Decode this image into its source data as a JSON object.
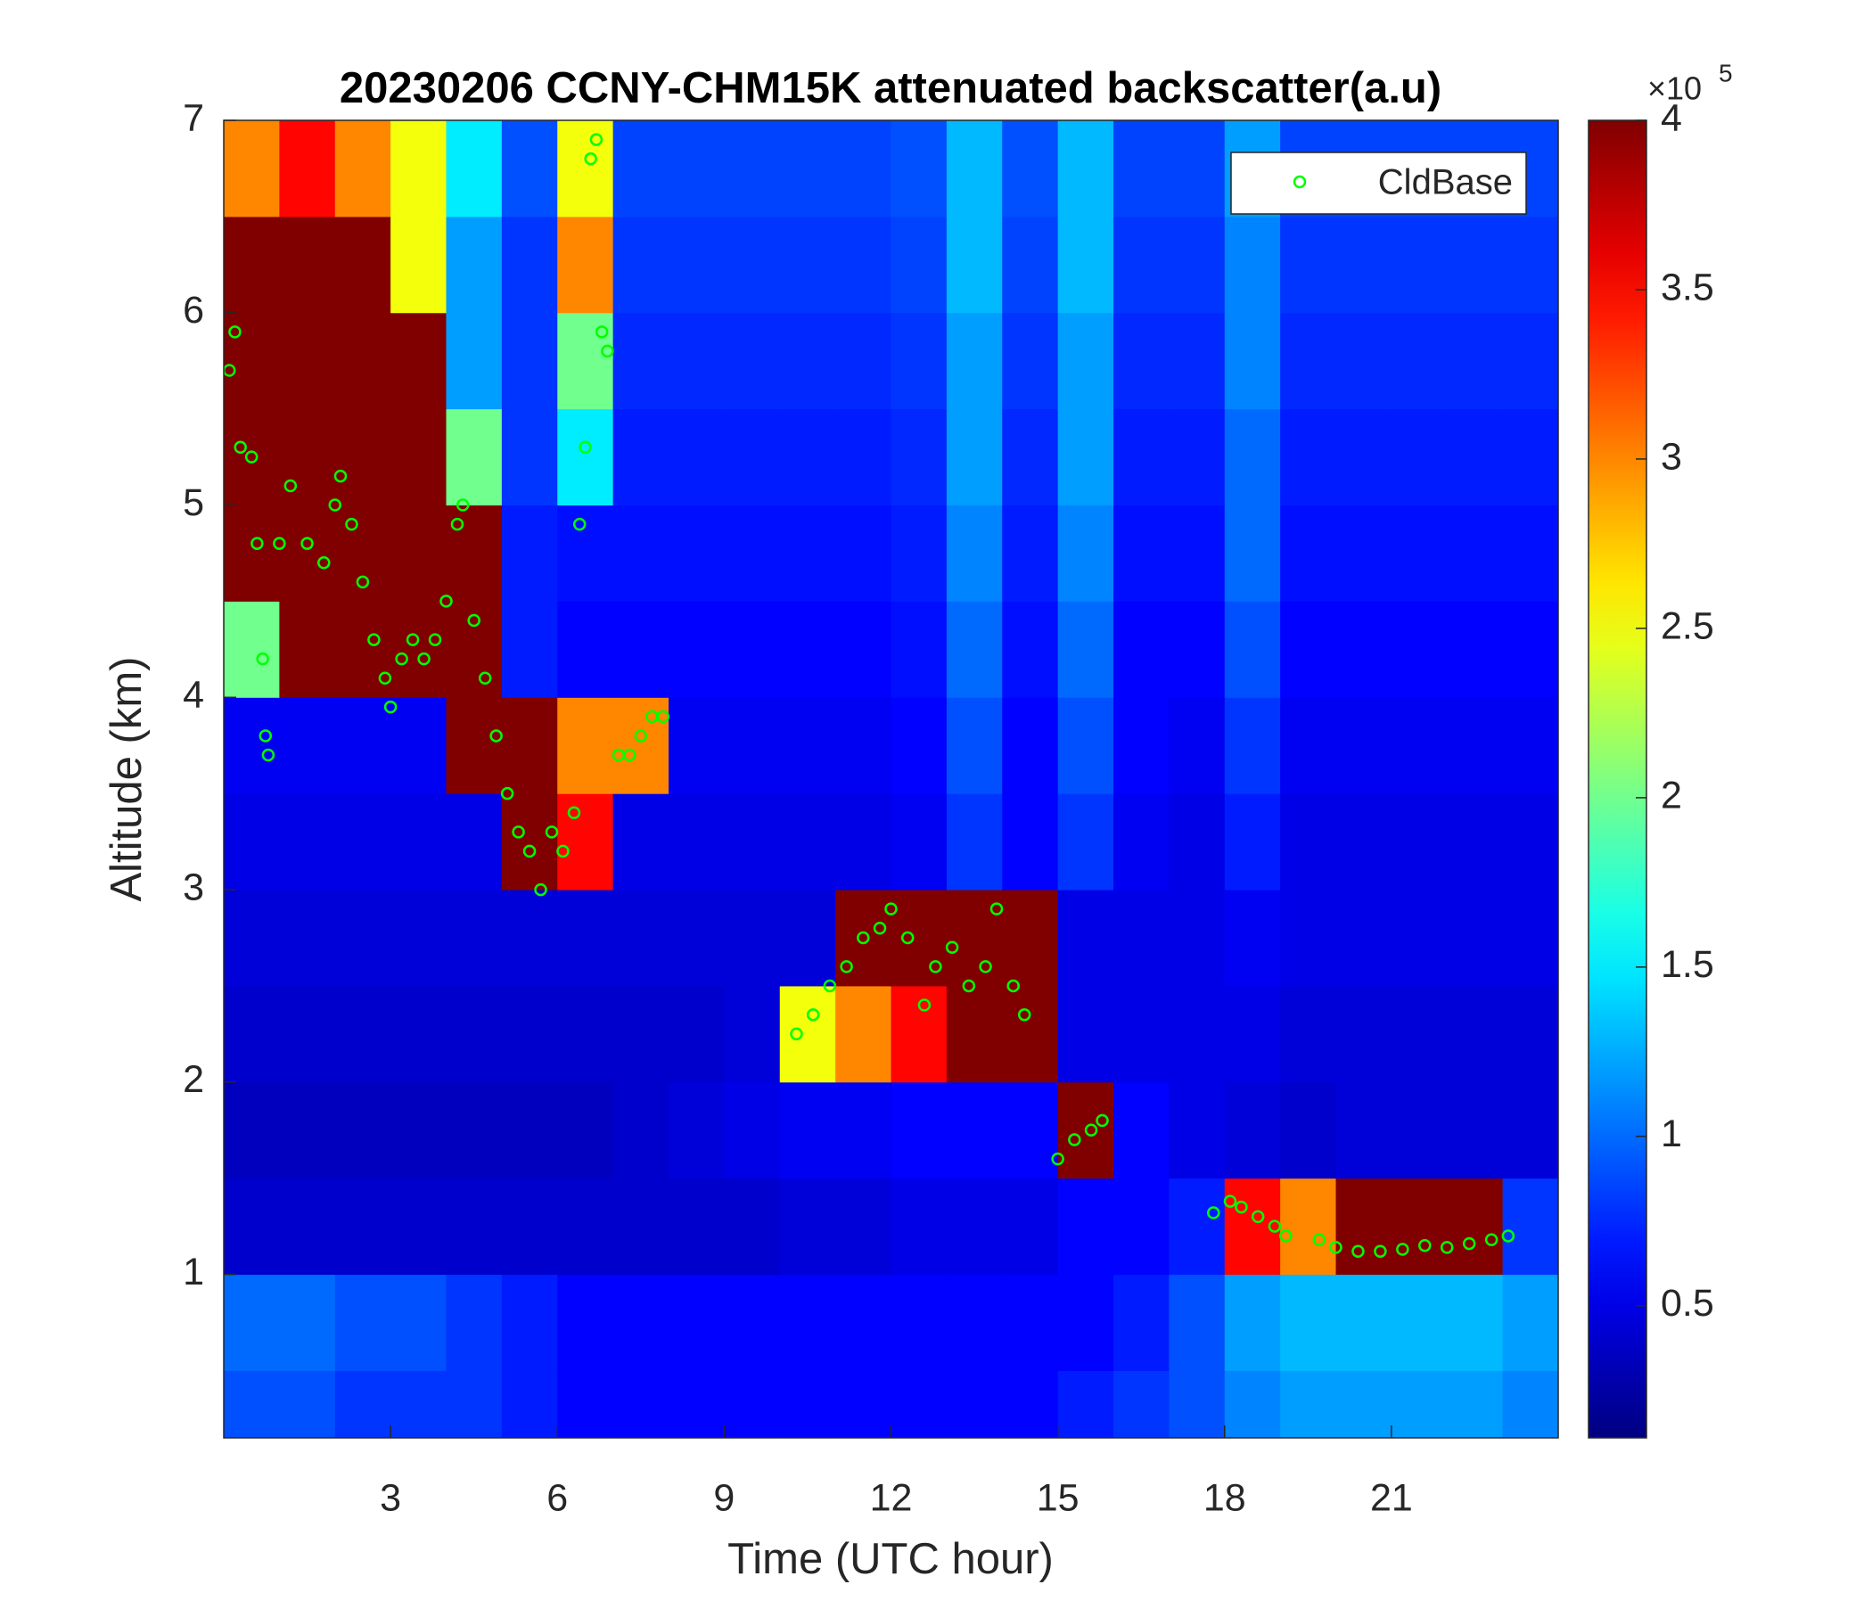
{
  "chart_data": {
    "type": "heatmap",
    "title": "20230206 CCNY-CHM15K attenuated backscatter(a.u)",
    "xlabel": "Time (UTC hour)",
    "ylabel": "Altitude (km)",
    "xlim": [
      0,
      24
    ],
    "ylim": [
      0.15,
      7
    ],
    "xticks": [
      3,
      6,
      9,
      12,
      15,
      18,
      21
    ],
    "yticks": [
      1,
      2,
      3,
      4,
      5,
      6,
      7
    ],
    "x_edges": [
      0,
      1,
      2,
      3,
      4,
      5,
      6,
      7,
      8,
      9,
      10,
      11,
      12,
      13,
      14,
      15,
      16,
      17,
      18,
      19,
      20,
      21,
      22,
      23,
      24
    ],
    "y_edges": [
      0,
      0.5,
      1,
      1.5,
      2,
      2.5,
      3,
      3.5,
      4,
      4.5,
      5,
      5.5,
      6,
      6.5,
      7
    ],
    "colormap": "jet",
    "z": [
      [
        0.9,
        0.9,
        0.8,
        0.8,
        0.8,
        0.7,
        0.6,
        0.6,
        0.6,
        0.6,
        0.6,
        0.6,
        0.6,
        0.6,
        0.6,
        0.7,
        0.8,
        0.9,
        1.1,
        1.2,
        1.2,
        1.2,
        1.2,
        1.1
      ],
      [
        1.0,
        1.0,
        0.9,
        0.9,
        0.8,
        0.7,
        0.6,
        0.6,
        0.6,
        0.6,
        0.6,
        0.6,
        0.6,
        0.6,
        0.6,
        0.6,
        0.7,
        0.9,
        1.2,
        1.3,
        1.3,
        1.3,
        1.3,
        1.2
      ],
      [
        0.4,
        0.4,
        0.4,
        0.4,
        0.4,
        0.4,
        0.4,
        0.4,
        0.4,
        0.4,
        0.45,
        0.45,
        0.5,
        0.5,
        0.5,
        0.6,
        0.6,
        0.7,
        3.5,
        3.0,
        4,
        4,
        4,
        0.8
      ],
      [
        0.35,
        0.35,
        0.35,
        0.35,
        0.35,
        0.35,
        0.35,
        0.4,
        0.45,
        0.5,
        0.55,
        0.55,
        0.6,
        0.6,
        0.6,
        4,
        0.6,
        0.5,
        0.45,
        0.4,
        0.45,
        0.45,
        0.45,
        0.45
      ],
      [
        0.4,
        0.4,
        0.4,
        0.4,
        0.4,
        0.4,
        0.4,
        0.4,
        0.4,
        0.45,
        2.5,
        3,
        3.5,
        4,
        4,
        0.5,
        0.5,
        0.5,
        0.5,
        0.45,
        0.45,
        0.45,
        0.45,
        0.45
      ],
      [
        0.45,
        0.45,
        0.45,
        0.45,
        0.45,
        0.45,
        0.45,
        0.45,
        0.45,
        0.45,
        0.45,
        4,
        4,
        4,
        4,
        0.5,
        0.5,
        0.5,
        0.55,
        0.5,
        0.5,
        0.5,
        0.5,
        0.5
      ],
      [
        0.5,
        0.5,
        0.5,
        0.5,
        0.5,
        4,
        3.5,
        0.5,
        0.5,
        0.5,
        0.5,
        0.5,
        0.55,
        0.8,
        0.6,
        0.8,
        0.55,
        0.5,
        0.7,
        0.5,
        0.5,
        0.5,
        0.5,
        0.5
      ],
      [
        0.55,
        0.55,
        0.55,
        0.55,
        4,
        4,
        3,
        3,
        0.55,
        0.55,
        0.55,
        0.55,
        0.6,
        0.9,
        0.6,
        0.9,
        0.6,
        0.55,
        0.8,
        0.55,
        0.55,
        0.55,
        0.55,
        0.55
      ],
      [
        2,
        4,
        4,
        4,
        4,
        0.7,
        0.6,
        0.6,
        0.6,
        0.6,
        0.6,
        0.6,
        0.65,
        1,
        0.65,
        1,
        0.6,
        0.6,
        0.9,
        0.6,
        0.6,
        0.6,
        0.6,
        0.6
      ],
      [
        4,
        4,
        4,
        4,
        4,
        0.7,
        0.65,
        0.65,
        0.65,
        0.65,
        0.65,
        0.65,
        0.7,
        1.1,
        0.7,
        1.1,
        0.65,
        0.65,
        1,
        0.65,
        0.65,
        0.65,
        0.65,
        0.65
      ],
      [
        4,
        4,
        4,
        4,
        2,
        0.8,
        1.5,
        0.7,
        0.7,
        0.7,
        0.7,
        0.7,
        0.75,
        1.2,
        0.75,
        1.2,
        0.7,
        0.7,
        1,
        0.7,
        0.7,
        0.7,
        0.7,
        0.7
      ],
      [
        4,
        4,
        4,
        4,
        1.2,
        0.8,
        2,
        0.75,
        0.75,
        0.75,
        0.75,
        0.75,
        0.8,
        1.2,
        0.8,
        1.2,
        0.75,
        0.75,
        1.1,
        0.75,
        0.75,
        0.75,
        0.75,
        0.75
      ],
      [
        4,
        4,
        4,
        2.5,
        1.2,
        0.8,
        3,
        0.8,
        0.8,
        0.8,
        0.8,
        0.8,
        0.85,
        1.3,
        0.85,
        1.3,
        0.8,
        0.8,
        1.1,
        0.8,
        0.8,
        0.8,
        0.8,
        0.8
      ],
      [
        3,
        3.5,
        3,
        2.5,
        1.5,
        0.9,
        2.5,
        0.85,
        0.85,
        0.85,
        0.85,
        0.85,
        0.9,
        1.3,
        0.9,
        1.3,
        0.85,
        0.85,
        1.2,
        0.85,
        0.85,
        0.85,
        0.85,
        0.85
      ]
    ],
    "colorbar": {
      "clim": [
        0.11,
        4
      ],
      "ticks": [
        0.5,
        1,
        1.5,
        2,
        2.5,
        3,
        3.5,
        4
      ],
      "exponent_base": "×10",
      "exponent": 5
    },
    "overlay": {
      "type": "scatter",
      "name": "CldBase",
      "color": "#00ff00",
      "x": [
        0.1,
        0.2,
        0.3,
        0.5,
        0.6,
        0.7,
        0.75,
        0.8,
        1.0,
        1.2,
        1.5,
        1.8,
        2.0,
        2.1,
        2.3,
        2.5,
        2.7,
        2.9,
        3.0,
        3.2,
        3.4,
        3.6,
        3.8,
        4.0,
        4.2,
        4.3,
        4.5,
        4.7,
        4.9,
        5.1,
        5.3,
        5.5,
        5.7,
        5.9,
        6.1,
        6.3,
        6.4,
        6.5,
        6.6,
        6.7,
        6.8,
        6.9,
        7.1,
        7.3,
        7.5,
        7.7,
        7.9,
        10.3,
        10.6,
        10.9,
        11.2,
        11.5,
        11.8,
        12.0,
        12.3,
        12.6,
        12.8,
        13.1,
        13.4,
        13.7,
        13.9,
        14.2,
        14.4,
        15.0,
        15.3,
        15.6,
        15.8,
        17.8,
        18.1,
        18.3,
        18.6,
        18.9,
        19.1,
        19.7,
        20.0,
        20.4,
        20.8,
        21.2,
        21.6,
        22.0,
        22.4,
        22.8,
        23.1
      ],
      "y": [
        5.7,
        5.9,
        5.3,
        5.25,
        4.8,
        4.2,
        3.8,
        3.7,
        4.8,
        5.1,
        4.8,
        4.7,
        5.0,
        5.15,
        4.9,
        4.6,
        4.3,
        4.1,
        3.95,
        4.2,
        4.3,
        4.2,
        4.3,
        4.5,
        4.9,
        5.0,
        4.4,
        4.1,
        3.8,
        3.5,
        3.3,
        3.2,
        3.0,
        3.3,
        3.2,
        3.4,
        4.9,
        5.3,
        6.8,
        6.9,
        5.9,
        5.8,
        3.7,
        3.7,
        3.8,
        3.9,
        3.9,
        2.25,
        2.35,
        2.5,
        2.6,
        2.75,
        2.8,
        2.9,
        2.75,
        2.4,
        2.6,
        2.7,
        2.5,
        2.6,
        2.9,
        2.5,
        2.35,
        1.6,
        1.7,
        1.75,
        1.8,
        1.32,
        1.38,
        1.35,
        1.3,
        1.25,
        1.2,
        1.18,
        1.14,
        1.12,
        1.12,
        1.13,
        1.15,
        1.14,
        1.16,
        1.18,
        1.2
      ]
    },
    "legend": "upper right"
  }
}
